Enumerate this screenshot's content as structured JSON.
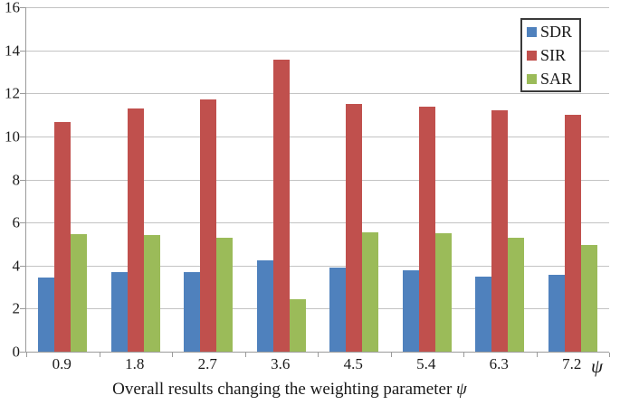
{
  "chart_data": {
    "type": "bar",
    "title": "Overall results changing the weighting parameter",
    "title_symbol": "ψ",
    "x_axis_symbol": "ψ",
    "categories": [
      "0.9",
      "1.8",
      "2.7",
      "3.6",
      "4.5",
      "5.4",
      "6.3",
      "7.2"
    ],
    "series": [
      {
        "name": "SDR",
        "color": "#4F81BD",
        "values": [
          3.45,
          3.7,
          3.7,
          4.25,
          3.9,
          3.8,
          3.5,
          3.55
        ]
      },
      {
        "name": "SIR",
        "color": "#C0504D",
        "values": [
          10.65,
          11.3,
          11.7,
          13.55,
          11.5,
          11.4,
          11.2,
          11.0
        ]
      },
      {
        "name": "SAR",
        "color": "#9BBB59",
        "values": [
          5.45,
          5.4,
          5.3,
          2.45,
          5.55,
          5.5,
          5.3,
          4.95
        ]
      }
    ],
    "ylim": [
      0,
      16
    ],
    "y_tick_step": 2,
    "y_ticks": [
      "0",
      "2",
      "4",
      "6",
      "8",
      "10",
      "12",
      "14",
      "16"
    ],
    "grid": "horizontal",
    "legend_position": "top-right",
    "colors": {
      "gridline": "#C3C3C3",
      "axis": "#9B9B9B",
      "text": "#1A1A1A",
      "legend_border": "#3A3A3A",
      "background": "#FFFFFF"
    }
  }
}
